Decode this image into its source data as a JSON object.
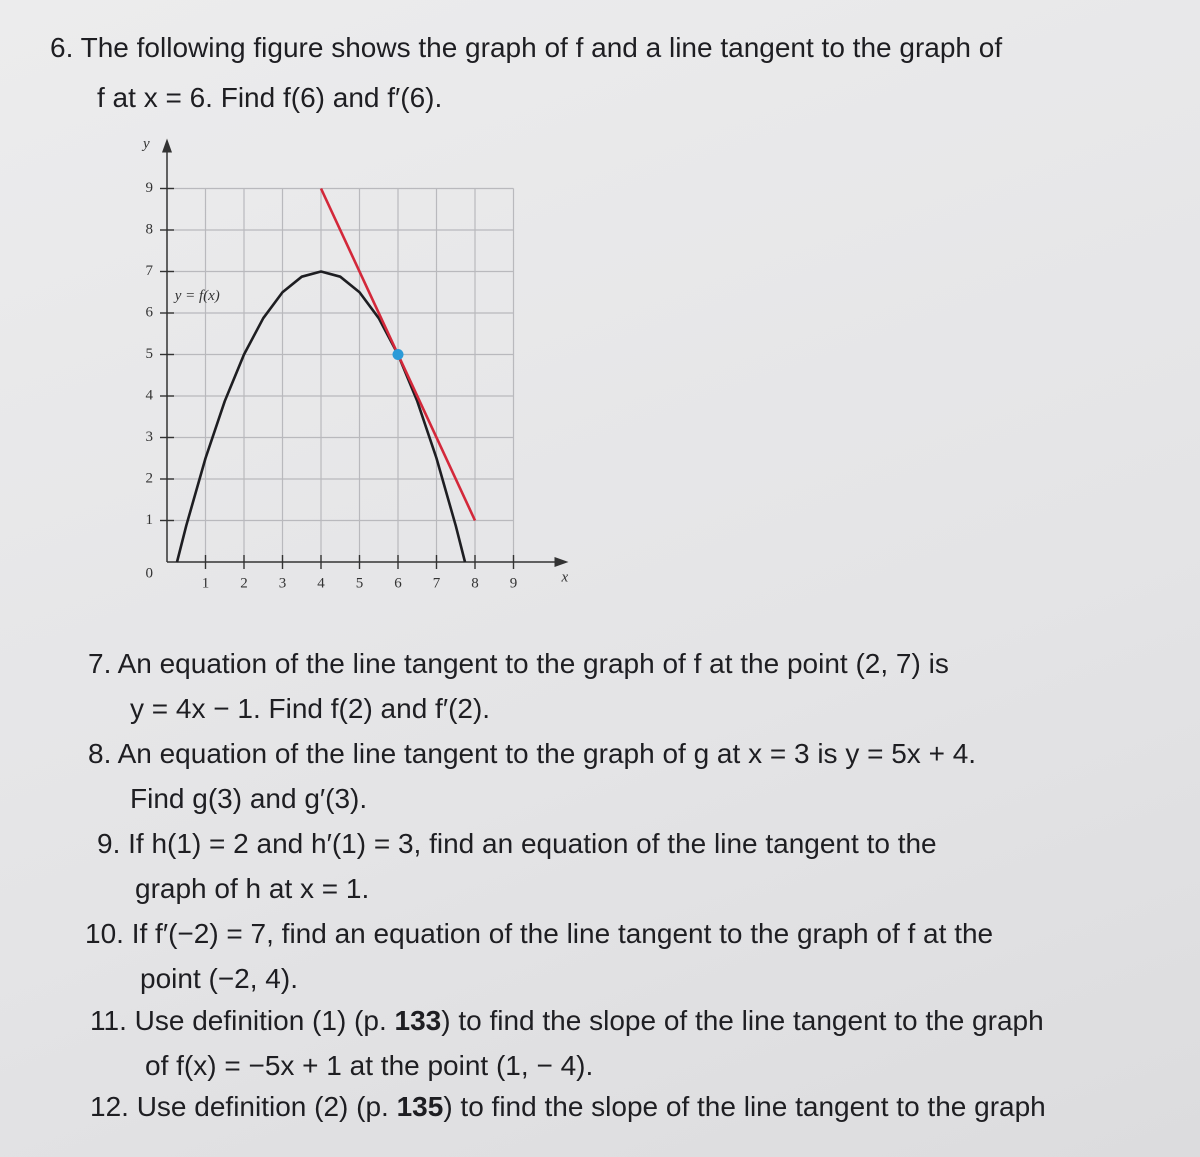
{
  "problems": [
    {
      "lines": [
        "6. The following figure shows the graph of f and a line tangent to the graph of",
        "f at x = 6. Find f(6) and f′(6)."
      ]
    },
    {
      "lines": [
        "7. An equation of the line tangent to the graph of f at the point (2, 7) is",
        "y = 4x − 1. Find f(2) and f′(2)."
      ]
    },
    {
      "lines": [
        "8. An equation of the line tangent to the graph of g at x = 3 is y = 5x + 4.",
        "Find g(3) and g′(3)."
      ]
    },
    {
      "lines": [
        "9. If h(1) = 2 and h′(1) = 3, find an equation of the line tangent to the",
        "graph of h at x = 1."
      ]
    },
    {
      "lines": [
        "10. If f′(−2) = 7, find an equation of the line tangent to the graph of f at the",
        "point (−2, 4)."
      ]
    },
    {
      "lines": [
        [
          "11. Use definition (1) (p. ",
          "133",
          ") to find the slope of the line tangent to the graph"
        ],
        "of f(x) = −5x + 1 at the point (1, − 4)."
      ]
    },
    {
      "lines": [
        [
          "12. Use definition (2) (p. ",
          "135",
          ") to find the slope of the line tangent to the graph"
        ]
      ]
    }
  ],
  "figure": {
    "type": "line",
    "xlabel": "x",
    "ylabel": "y",
    "origin_label": "0",
    "xlim": [
      0,
      9
    ],
    "ylim": [
      0,
      9
    ],
    "xticks": [
      1,
      2,
      3,
      4,
      5,
      6,
      7,
      8,
      9
    ],
    "yticks": [
      1,
      2,
      3,
      4,
      5,
      6,
      7,
      8,
      9
    ],
    "grid": true,
    "series": [
      {
        "name": "y = f(x)",
        "color": "#1e1e22",
        "x": [
          0.26,
          0.5,
          1,
          1.5,
          2,
          2.5,
          3,
          3.5,
          4,
          4.5,
          5,
          5.5,
          6,
          6.5,
          7,
          7.5,
          7.74
        ],
        "values": [
          0,
          0.875,
          2.5,
          3.875,
          5,
          5.875,
          6.5,
          6.875,
          7,
          6.875,
          6.5,
          5.875,
          5,
          3.875,
          2.5,
          0.875,
          0
        ]
      },
      {
        "color": "#d3283a",
        "x": [
          4,
          8
        ],
        "values": [
          9,
          1
        ]
      }
    ],
    "point": {
      "x": 6,
      "y": 5,
      "color": "#2b9bd8"
    }
  }
}
